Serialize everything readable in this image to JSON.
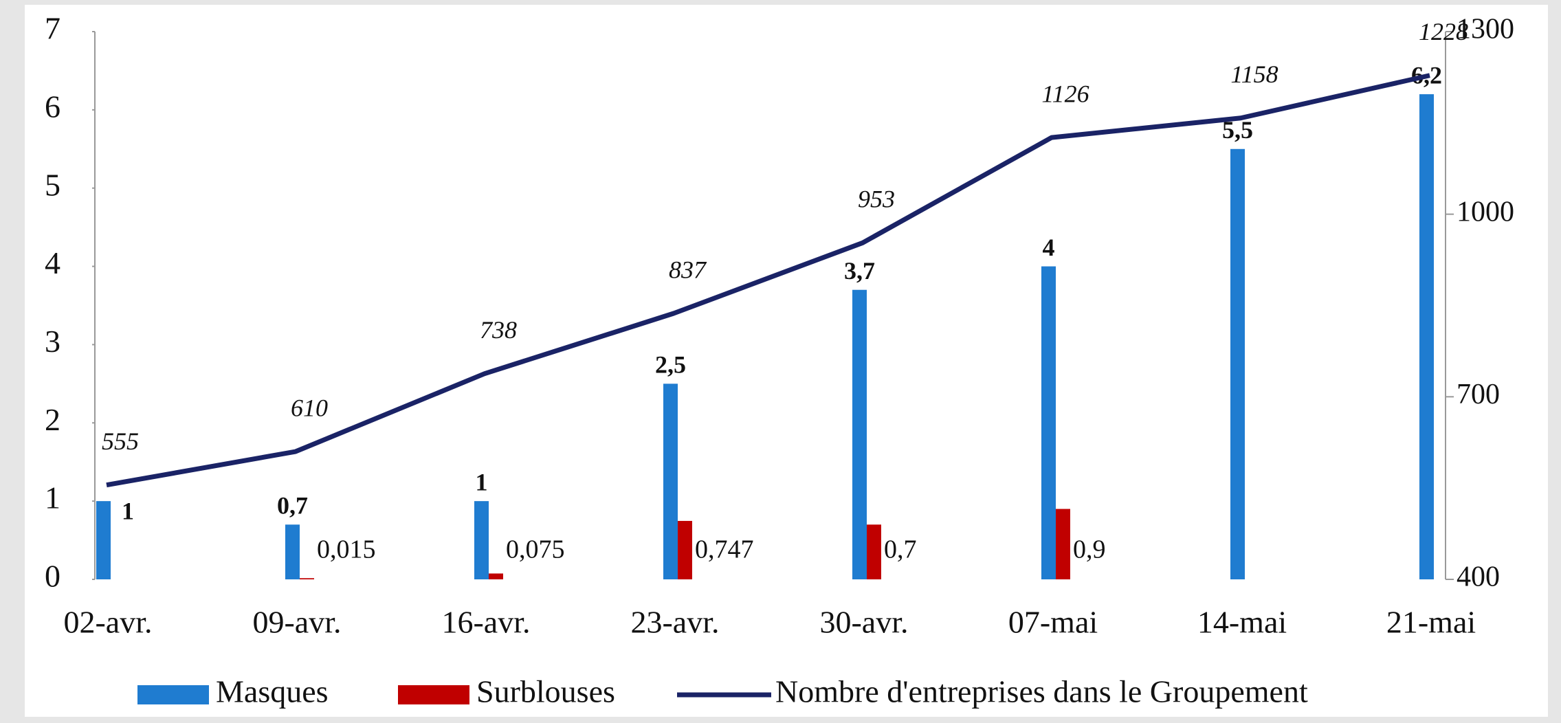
{
  "chart_data": {
    "type": "bar-line",
    "categories": [
      "02-avr.",
      "09-avr.",
      "16-avr.",
      "23-avr.",
      "30-avr.",
      "07-mai",
      "14-mai",
      "21-mai"
    ],
    "series": [
      {
        "name": "Masques",
        "color": "#1f7cd0",
        "type": "bar",
        "values": [
          1,
          0.7,
          1,
          2.5,
          3.7,
          4,
          5.5,
          6.2
        ],
        "value_labels": [
          "1",
          "0,7",
          "1",
          "2,5",
          "3,7",
          "4",
          "5,5",
          "6,2"
        ]
      },
      {
        "name": "Surblouses",
        "color": "#c00000",
        "type": "bar",
        "values": [
          null,
          0.015,
          0.075,
          0.747,
          0.7,
          0.9,
          null,
          null
        ],
        "value_labels": [
          null,
          "0,015",
          "0,075",
          "0,747",
          "0,7",
          "0,9",
          null,
          null
        ]
      },
      {
        "name": "Nombre d'entreprises dans le Groupement",
        "color": "#1a2366",
        "type": "line",
        "axis": "y2",
        "values": [
          555,
          610,
          738,
          837,
          953,
          1126,
          1158,
          1228
        ]
      }
    ],
    "ylim": [
      0,
      7
    ],
    "yticks": [
      0,
      1,
      2,
      3,
      4,
      5,
      6,
      7
    ],
    "y2lim": [
      400,
      1300
    ],
    "y2ticks": [
      400,
      700,
      1000,
      1300
    ],
    "legend": "bottom"
  }
}
